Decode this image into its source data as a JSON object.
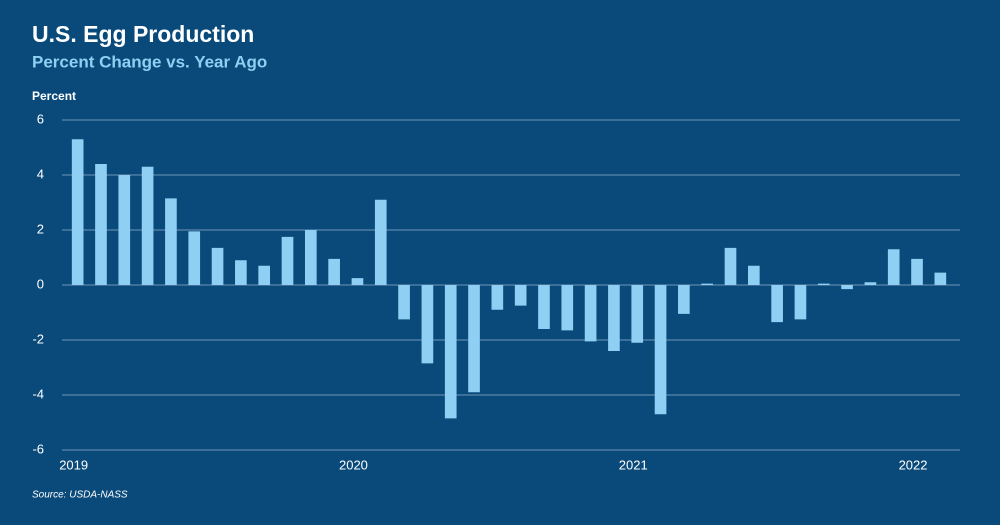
{
  "chart_data": {
    "type": "bar",
    "title": "U.S. Egg Production",
    "subtitle": "Percent Change vs. Year Ago",
    "y_label": "Percent",
    "source": "Source: USDA-NASS",
    "categories": [
      "2019",
      null,
      null,
      null,
      null,
      null,
      null,
      null,
      null,
      null,
      null,
      null,
      "2020",
      null,
      null,
      null,
      null,
      null,
      null,
      null,
      null,
      null,
      null,
      null,
      "2021",
      null,
      null,
      null,
      null,
      null,
      null,
      null,
      null,
      null,
      null,
      null,
      "2022",
      null
    ],
    "values": [
      5.3,
      4.4,
      4.0,
      4.3,
      3.15,
      1.95,
      1.35,
      0.9,
      0.7,
      1.75,
      2.0,
      0.95,
      0.25,
      3.1,
      -1.25,
      -2.85,
      -4.85,
      -3.9,
      -0.9,
      -0.75,
      -1.6,
      -1.65,
      -2.05,
      -2.4,
      -2.1,
      -4.7,
      -1.05,
      0.05,
      1.35,
      0.7,
      -1.35,
      -1.25,
      0.05,
      -0.15,
      0.1,
      1.3,
      0.95,
      0.45
    ],
    "color": "#8fcff3",
    "ylim": [
      -6,
      6
    ],
    "yticks": [
      -6,
      -4,
      -2,
      0,
      2,
      4,
      6
    ],
    "grid": true
  }
}
